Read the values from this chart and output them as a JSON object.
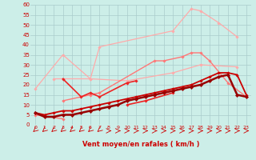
{
  "xlabel": "Vent moyen/en rafales ( km/h )",
  "background_color": "#cceee8",
  "grid_color": "#aacccc",
  "ylim": [
    0,
    60
  ],
  "xlim": [
    -0.5,
    23.5
  ],
  "yticks": [
    0,
    5,
    10,
    15,
    20,
    25,
    30,
    35,
    40,
    45,
    50,
    55,
    60
  ],
  "all_lines": [
    {
      "x": [
        0,
        3,
        6,
        7,
        15,
        17,
        18,
        20,
        22
      ],
      "y": [
        18,
        35,
        23,
        39,
        47,
        58,
        57,
        51,
        44
      ],
      "color": "#ffaaaa",
      "lw": 0.9,
      "marker": "D",
      "ms": 1.8
    },
    {
      "x": [
        2,
        6,
        10,
        15,
        18,
        22
      ],
      "y": [
        23,
        23,
        22,
        26,
        30,
        29
      ],
      "color": "#ffaaaa",
      "lw": 0.9,
      "marker": "D",
      "ms": 1.8
    },
    {
      "x": [
        0,
        3
      ],
      "y": [
        5,
        3
      ],
      "color": "#ff7777",
      "lw": 1.0,
      "marker": "D",
      "ms": 1.8
    },
    {
      "x": [
        3,
        6,
        7,
        13,
        14,
        16,
        17,
        18,
        19,
        21,
        23
      ],
      "y": [
        12,
        15,
        16,
        32,
        32,
        34,
        36,
        36,
        32,
        21,
        14
      ],
      "color": "#ff7777",
      "lw": 1.0,
      "marker": "D",
      "ms": 1.8
    },
    {
      "x": [
        3,
        5,
        6,
        7,
        10,
        11
      ],
      "y": [
        23,
        14,
        16,
        14,
        21,
        22
      ],
      "color": "#ee2222",
      "lw": 1.2,
      "marker": "D",
      "ms": 1.8
    },
    {
      "x": [
        10,
        12,
        15
      ],
      "y": [
        10,
        12,
        16
      ],
      "color": "#ee2222",
      "lw": 1.2,
      "marker": "D",
      "ms": 1.8
    },
    {
      "x": [
        0,
        1,
        2,
        3,
        4,
        5,
        6,
        7,
        8,
        9,
        10,
        11,
        12,
        13,
        14,
        15,
        16,
        17,
        18,
        19,
        20,
        21,
        22,
        23
      ],
      "y": [
        6,
        5,
        6,
        7,
        7,
        8,
        9,
        10,
        11,
        12,
        13,
        14,
        15,
        16,
        17,
        18,
        19,
        20,
        22,
        24,
        26,
        26,
        25,
        15
      ],
      "color": "#cc0000",
      "lw": 1.3,
      "marker": "D",
      "ms": 1.8
    },
    {
      "x": [
        0,
        1,
        2,
        3,
        4,
        5,
        6,
        7,
        8,
        9,
        10,
        11,
        12,
        13,
        14,
        15,
        16,
        17,
        18,
        19,
        20,
        21,
        22,
        23
      ],
      "y": [
        6,
        4,
        4,
        5,
        5,
        6,
        7,
        8,
        9,
        10,
        12,
        13,
        14,
        15,
        16,
        17,
        18,
        19,
        20,
        22,
        24,
        25,
        15,
        14
      ],
      "color": "#990000",
      "lw": 1.8,
      "marker": "D",
      "ms": 2.2
    }
  ],
  "arrows": {
    "left_indices": [
      0,
      1,
      2,
      3,
      4,
      5,
      6,
      7
    ],
    "right_indices": [
      8,
      9,
      10,
      11,
      12,
      13,
      14,
      15,
      16,
      17,
      18,
      19,
      20,
      21,
      22,
      23
    ],
    "color": "#cc0000"
  }
}
